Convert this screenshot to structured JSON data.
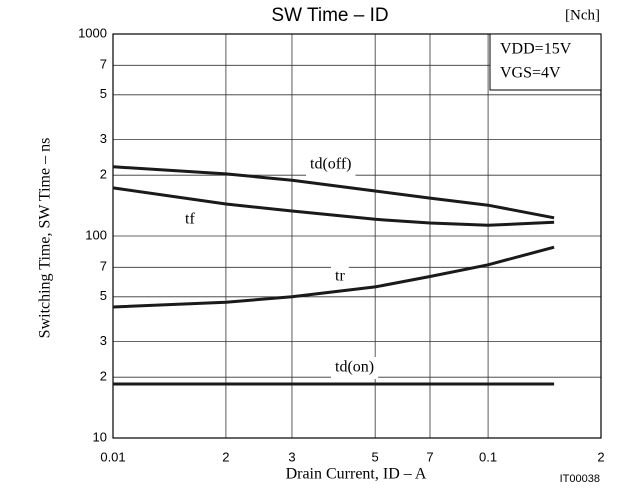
{
  "chart_data": {
    "type": "line",
    "title": "SW Time  –  ID",
    "subtitle": "[Nch]",
    "x_label": "Drain Current, ID  –  A",
    "y_label": "Switching Time, SW Time  –  ns",
    "annotations": [
      "VDD=15V",
      "VGS=4V",
      "IT00038"
    ],
    "x": [
      0.01,
      0.02,
      0.03,
      0.05,
      0.07,
      0.1,
      0.15
    ],
    "series": [
      {
        "name": "td(off)",
        "color": "#1a1a1a",
        "values": [
          220,
          203,
          189,
          167,
          154,
          142,
          123
        ]
      },
      {
        "name": "tf",
        "color": "#1a1a1a",
        "values": [
          173,
          144,
          133,
          121,
          116,
          113,
          117
        ]
      },
      {
        "name": "tr",
        "color": "#1a1a1a",
        "values": [
          44.5,
          47,
          50,
          56,
          63,
          72,
          88
        ]
      },
      {
        "name": "td(on)",
        "color": "#1a1a1a",
        "values": [
          18.5,
          18.5,
          18.5,
          18.5,
          18.5,
          18.5,
          18.5
        ]
      }
    ],
    "xscale": "log",
    "yscale": "log",
    "xlim": [
      0.01,
      0.2
    ],
    "ylim": [
      10,
      1000
    ],
    "xticks": [
      0.01,
      {
        "value": 0.02,
        "label": "2"
      },
      {
        "value": 0.03,
        "label": "3"
      },
      {
        "value": 0.05,
        "label": "5"
      },
      {
        "value": 0.07,
        "label": "7"
      },
      0.1,
      {
        "value": 0.2,
        "label": "2"
      }
    ],
    "yticks": [
      10,
      {
        "value": 20,
        "label": "2"
      },
      {
        "value": 30,
        "label": "3"
      },
      {
        "value": 50,
        "label": "5"
      },
      {
        "value": 70,
        "label": "7"
      },
      100,
      {
        "value": 200,
        "label": "2"
      },
      {
        "value": 300,
        "label": "3"
      },
      {
        "value": 500,
        "label": "5"
      },
      {
        "value": 700,
        "label": "7"
      },
      1000
    ],
    "grid": true
  }
}
